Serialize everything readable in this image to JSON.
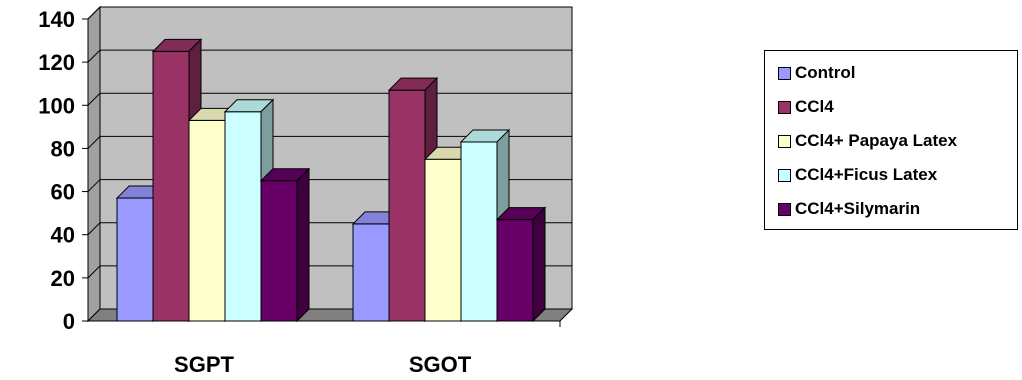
{
  "chart_data": {
    "type": "bar",
    "title": "",
    "xlabel": "",
    "ylabel": "",
    "categories": [
      "SGPT",
      "SGOT"
    ],
    "ylim": [
      0,
      140
    ],
    "yticks": [
      "0",
      "20",
      "40",
      "60",
      "80",
      "100",
      "120",
      "140"
    ],
    "grid": true,
    "legend_position": "right",
    "style": "3d-clustered-column",
    "series": [
      {
        "name": "Control",
        "values": [
          57,
          45
        ],
        "color": "#9999ff"
      },
      {
        "name": "CCl4",
        "values": [
          125,
          107
        ],
        "color": "#993366"
      },
      {
        "name": "CCl4+ Papaya Latex",
        "values": [
          93,
          75
        ],
        "color": "#ffffcc"
      },
      {
        "name": "CCl4+Ficus Latex",
        "values": [
          97,
          83
        ],
        "color": "#ccffff"
      },
      {
        "name": "CCl4+Silymarin",
        "values": [
          65,
          47
        ],
        "color": "#660066"
      }
    ],
    "wall_color": "#c0c0c0",
    "floor_color": "#808080"
  }
}
